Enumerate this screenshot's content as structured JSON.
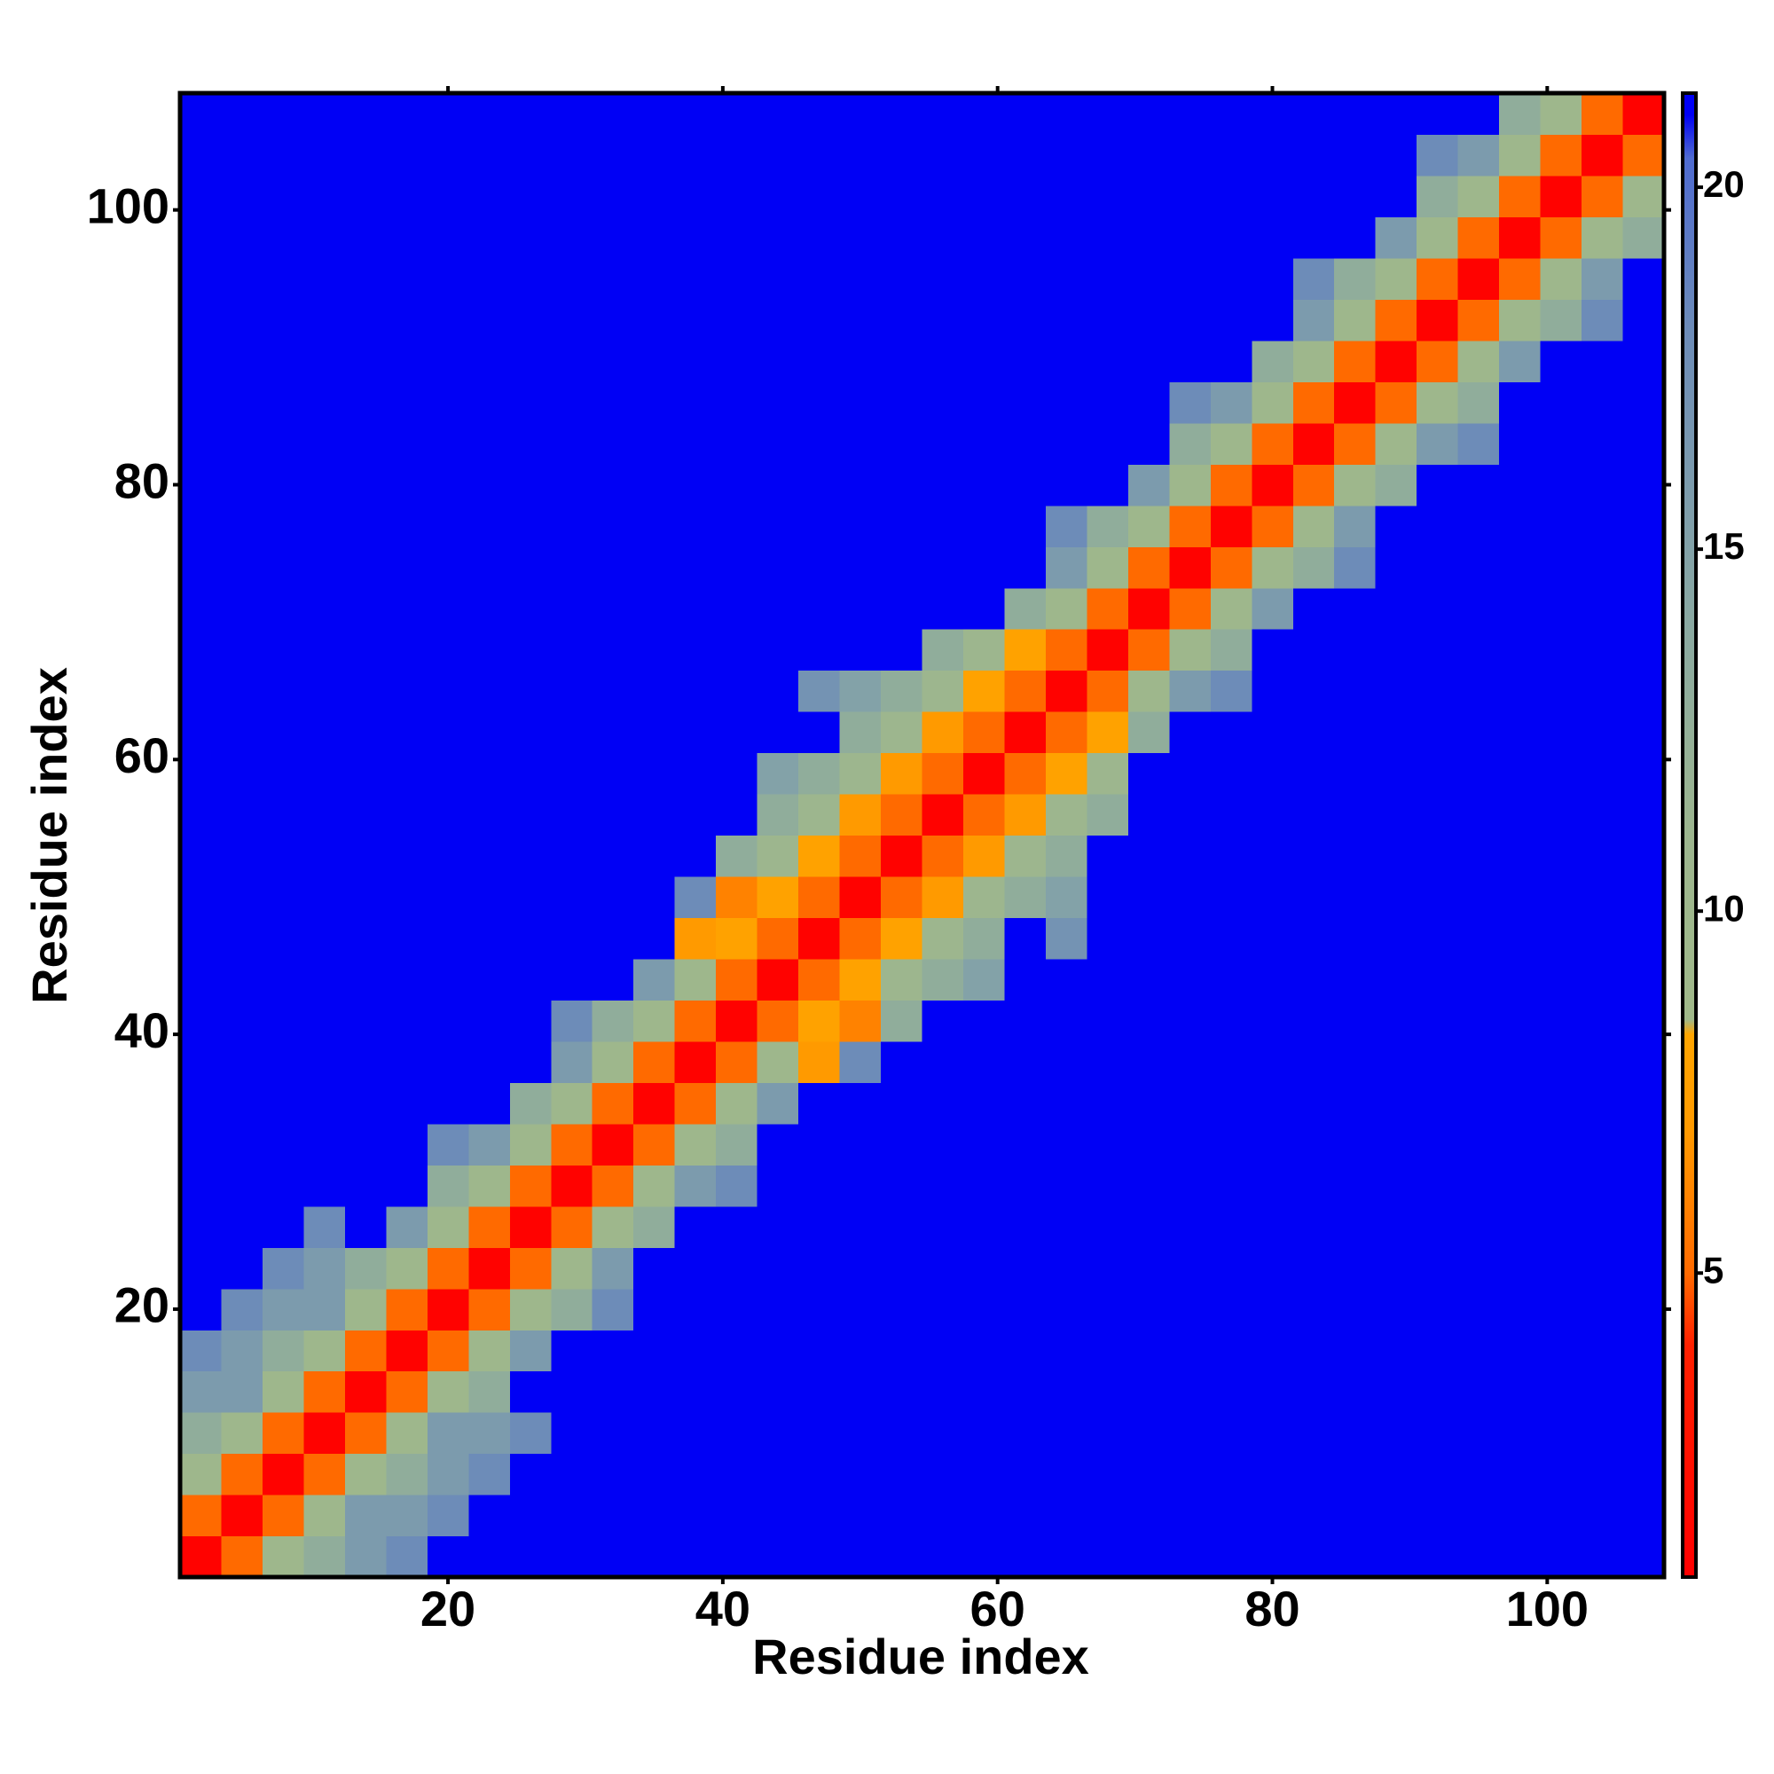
{
  "chart_data": {
    "type": "heatmap",
    "x_label": "Residue index",
    "y_label": "Residue index",
    "x": [
      2,
      5,
      8,
      11,
      14,
      17,
      20,
      23,
      26,
      29,
      32,
      35,
      38,
      41,
      44,
      47,
      50,
      53,
      56,
      59,
      62,
      65,
      68,
      71,
      74,
      77,
      80,
      83,
      86,
      89,
      92,
      95,
      98,
      101,
      104,
      107
    ],
    "y": [
      2,
      5,
      8,
      11,
      14,
      17,
      20,
      23,
      26,
      29,
      32,
      35,
      38,
      41,
      44,
      47,
      50,
      53,
      56,
      59,
      62,
      65,
      68,
      71,
      74,
      77,
      80,
      83,
      86,
      89,
      92,
      95,
      98,
      101,
      104,
      107
    ],
    "xlim": [
      0.5,
      108.5
    ],
    "ylim": [
      0.5,
      108.5
    ],
    "xticks": [
      20,
      40,
      60,
      80,
      100
    ],
    "yticks": [
      20,
      40,
      60,
      80,
      100
    ],
    "zlim": [
      0.8,
      21.3
    ],
    "zticks": [
      5,
      10,
      15,
      20
    ],
    "colorscale": [
      [
        0.8,
        "#ff0000"
      ],
      [
        4,
        "#ff2000"
      ],
      [
        5,
        "#ff6a00"
      ],
      [
        7,
        "#ff9a00"
      ],
      [
        8.3,
        "#ffa500"
      ],
      [
        8.5,
        "#a0b98a"
      ],
      [
        11,
        "#9db68e"
      ],
      [
        14,
        "#8aa9a2"
      ],
      [
        18,
        "#6d8cb8"
      ],
      [
        20.4,
        "#4f6bd0"
      ],
      [
        21,
        "#0000f5"
      ],
      [
        21.3,
        "#0000f5"
      ]
    ],
    "z": [
      [
        1,
        5,
        10,
        13,
        16,
        18,
        21,
        21,
        21,
        21,
        21,
        21,
        21,
        21,
        21,
        21,
        21,
        21,
        21,
        21,
        21,
        21,
        21,
        21,
        21,
        21,
        21,
        21,
        21,
        21,
        21,
        21,
        21,
        21,
        21,
        21
      ],
      [
        5,
        1,
        5,
        10,
        16,
        16,
        18,
        21,
        21,
        21,
        21,
        21,
        21,
        21,
        21,
        21,
        21,
        21,
        21,
        21,
        21,
        21,
        21,
        21,
        21,
        21,
        21,
        21,
        21,
        21,
        21,
        21,
        21,
        21,
        21,
        21
      ],
      [
        10,
        5,
        1,
        5,
        10,
        13,
        16,
        18,
        21,
        21,
        21,
        21,
        21,
        21,
        21,
        21,
        21,
        21,
        21,
        21,
        21,
        21,
        21,
        21,
        21,
        21,
        21,
        21,
        21,
        21,
        21,
        21,
        21,
        21,
        21,
        21
      ],
      [
        13,
        10,
        5,
        1,
        5,
        10,
        16,
        16,
        18,
        21,
        21,
        21,
        21,
        21,
        21,
        21,
        21,
        21,
        21,
        21,
        21,
        21,
        21,
        21,
        21,
        21,
        21,
        21,
        21,
        21,
        21,
        21,
        21,
        21,
        21,
        21
      ],
      [
        16,
        16,
        10,
        5,
        1,
        5,
        10,
        13,
        21,
        21,
        21,
        21,
        21,
        21,
        21,
        21,
        21,
        21,
        21,
        21,
        21,
        21,
        21,
        21,
        21,
        21,
        21,
        21,
        21,
        21,
        21,
        21,
        21,
        21,
        21,
        21
      ],
      [
        18,
        16,
        13,
        10,
        5,
        1,
        5,
        10,
        16,
        21,
        21,
        21,
        21,
        21,
        21,
        21,
        21,
        21,
        21,
        21,
        21,
        21,
        21,
        21,
        21,
        21,
        21,
        21,
        21,
        21,
        21,
        21,
        21,
        21,
        21,
        21
      ],
      [
        21,
        18,
        16,
        16,
        10,
        5,
        1,
        5,
        10,
        13,
        18,
        21,
        21,
        21,
        21,
        21,
        21,
        21,
        21,
        21,
        21,
        21,
        21,
        21,
        21,
        21,
        21,
        21,
        21,
        21,
        21,
        21,
        21,
        21,
        21,
        21
      ],
      [
        21,
        21,
        18,
        16,
        13,
        10,
        5,
        1,
        5,
        10,
        16,
        21,
        21,
        21,
        21,
        21,
        21,
        21,
        21,
        21,
        21,
        21,
        21,
        21,
        21,
        21,
        21,
        21,
        21,
        21,
        21,
        21,
        21,
        21,
        21,
        21
      ],
      [
        21,
        21,
        21,
        18,
        21,
        16,
        10,
        5,
        1,
        5,
        10,
        13,
        21,
        21,
        21,
        21,
        21,
        21,
        21,
        21,
        21,
        21,
        21,
        21,
        21,
        21,
        21,
        21,
        21,
        21,
        21,
        21,
        21,
        21,
        21,
        21
      ],
      [
        21,
        21,
        21,
        21,
        21,
        21,
        13,
        10,
        5,
        1,
        5,
        10,
        16,
        18,
        21,
        21,
        21,
        21,
        21,
        21,
        21,
        21,
        21,
        21,
        21,
        21,
        21,
        21,
        21,
        21,
        21,
        21,
        21,
        21,
        21,
        21
      ],
      [
        21,
        21,
        21,
        21,
        21,
        21,
        18,
        16,
        10,
        5,
        1,
        5,
        10,
        13,
        21,
        21,
        21,
        21,
        21,
        21,
        21,
        21,
        21,
        21,
        21,
        21,
        21,
        21,
        21,
        21,
        21,
        21,
        21,
        21,
        21,
        21
      ],
      [
        21,
        21,
        21,
        21,
        21,
        21,
        21,
        21,
        13,
        10,
        5,
        1,
        5,
        10,
        16,
        21,
        21,
        21,
        21,
        21,
        21,
        21,
        21,
        21,
        21,
        21,
        21,
        21,
        21,
        21,
        21,
        21,
        21,
        21,
        21,
        21
      ],
      [
        21,
        21,
        21,
        21,
        21,
        21,
        21,
        21,
        21,
        16,
        10,
        5,
        1,
        5,
        10,
        7,
        18,
        21,
        21,
        21,
        21,
        21,
        21,
        21,
        21,
        21,
        21,
        21,
        21,
        21,
        21,
        21,
        21,
        21,
        21,
        21
      ],
      [
        21,
        21,
        21,
        21,
        21,
        21,
        21,
        21,
        21,
        18,
        13,
        10,
        5,
        1,
        5,
        8,
        6,
        13,
        21,
        21,
        21,
        21,
        21,
        21,
        21,
        21,
        21,
        21,
        21,
        21,
        21,
        21,
        21,
        21,
        21,
        21
      ],
      [
        21,
        21,
        21,
        21,
        21,
        21,
        21,
        21,
        21,
        21,
        21,
        16,
        10,
        5,
        1,
        5,
        8,
        11,
        13,
        15,
        21,
        21,
        21,
        21,
        21,
        21,
        21,
        21,
        21,
        21,
        21,
        21,
        21,
        21,
        21,
        21
      ],
      [
        21,
        21,
        21,
        21,
        21,
        21,
        21,
        21,
        21,
        21,
        21,
        21,
        7,
        8,
        5,
        1,
        5,
        8,
        11,
        13,
        21,
        17,
        21,
        21,
        21,
        21,
        21,
        21,
        21,
        21,
        21,
        21,
        21,
        21,
        21,
        21
      ],
      [
        21,
        21,
        21,
        21,
        21,
        21,
        21,
        21,
        21,
        21,
        21,
        21,
        18,
        6,
        8,
        5,
        1,
        5,
        7,
        11,
        13,
        15,
        21,
        21,
        21,
        21,
        21,
        21,
        21,
        21,
        21,
        21,
        21,
        21,
        21,
        21
      ],
      [
        21,
        21,
        21,
        21,
        21,
        21,
        21,
        21,
        21,
        21,
        21,
        21,
        21,
        13,
        11,
        8,
        5,
        1,
        5,
        7,
        11,
        13,
        21,
        21,
        21,
        21,
        21,
        21,
        21,
        21,
        21,
        21,
        21,
        21,
        21,
        21
      ],
      [
        21,
        21,
        21,
        21,
        21,
        21,
        21,
        21,
        21,
        21,
        21,
        21,
        21,
        21,
        13,
        11,
        7,
        5,
        1,
        5,
        7,
        11,
        13,
        21,
        21,
        21,
        21,
        21,
        21,
        21,
        21,
        21,
        21,
        21,
        21,
        21
      ],
      [
        21,
        21,
        21,
        21,
        21,
        21,
        21,
        21,
        21,
        21,
        21,
        21,
        21,
        21,
        15,
        13,
        11,
        7,
        5,
        1,
        5,
        8,
        11,
        21,
        21,
        21,
        21,
        21,
        21,
        21,
        21,
        21,
        21,
        21,
        21,
        21
      ],
      [
        21,
        21,
        21,
        21,
        21,
        21,
        21,
        21,
        21,
        21,
        21,
        21,
        21,
        21,
        21,
        21,
        13,
        11,
        7,
        5,
        1,
        5,
        8,
        13,
        21,
        21,
        21,
        21,
        21,
        21,
        21,
        21,
        21,
        21,
        21,
        21
      ],
      [
        21,
        21,
        21,
        21,
        21,
        21,
        21,
        21,
        21,
        21,
        21,
        21,
        21,
        21,
        21,
        17,
        15,
        13,
        11,
        8,
        5,
        1,
        5,
        10,
        16,
        18,
        21,
        21,
        21,
        21,
        21,
        21,
        21,
        21,
        21,
        21
      ],
      [
        21,
        21,
        21,
        21,
        21,
        21,
        21,
        21,
        21,
        21,
        21,
        21,
        21,
        21,
        21,
        21,
        21,
        21,
        13,
        11,
        8,
        5,
        1,
        5,
        10,
        13,
        21,
        21,
        21,
        21,
        21,
        21,
        21,
        21,
        21,
        21
      ],
      [
        21,
        21,
        21,
        21,
        21,
        21,
        21,
        21,
        21,
        21,
        21,
        21,
        21,
        21,
        21,
        21,
        21,
        21,
        21,
        21,
        13,
        10,
        5,
        1,
        5,
        10,
        16,
        21,
        21,
        21,
        21,
        21,
        21,
        21,
        21,
        21
      ],
      [
        21,
        21,
        21,
        21,
        21,
        21,
        21,
        21,
        21,
        21,
        21,
        21,
        21,
        21,
        21,
        21,
        21,
        21,
        21,
        21,
        21,
        16,
        10,
        5,
        1,
        5,
        10,
        13,
        18,
        21,
        21,
        21,
        21,
        21,
        21,
        21
      ],
      [
        21,
        21,
        21,
        21,
        21,
        21,
        21,
        21,
        21,
        21,
        21,
        21,
        21,
        21,
        21,
        21,
        21,
        21,
        21,
        21,
        21,
        18,
        13,
        10,
        5,
        1,
        5,
        10,
        16,
        21,
        21,
        21,
        21,
        21,
        21,
        21
      ],
      [
        21,
        21,
        21,
        21,
        21,
        21,
        21,
        21,
        21,
        21,
        21,
        21,
        21,
        21,
        21,
        21,
        21,
        21,
        21,
        21,
        21,
        21,
        21,
        16,
        10,
        5,
        1,
        5,
        10,
        13,
        21,
        21,
        21,
        21,
        21,
        21
      ],
      [
        21,
        21,
        21,
        21,
        21,
        21,
        21,
        21,
        21,
        21,
        21,
        21,
        21,
        21,
        21,
        21,
        21,
        21,
        21,
        21,
        21,
        21,
        21,
        21,
        13,
        10,
        5,
        1,
        5,
        10,
        16,
        18,
        21,
        21,
        21,
        21
      ],
      [
        21,
        21,
        21,
        21,
        21,
        21,
        21,
        21,
        21,
        21,
        21,
        21,
        21,
        21,
        21,
        21,
        21,
        21,
        21,
        21,
        21,
        21,
        21,
        21,
        18,
        16,
        10,
        5,
        1,
        5,
        10,
        13,
        21,
        21,
        21,
        21
      ],
      [
        21,
        21,
        21,
        21,
        21,
        21,
        21,
        21,
        21,
        21,
        21,
        21,
        21,
        21,
        21,
        21,
        21,
        21,
        21,
        21,
        21,
        21,
        21,
        21,
        21,
        21,
        13,
        10,
        5,
        1,
        5,
        10,
        16,
        21,
        21,
        21
      ],
      [
        21,
        21,
        21,
        21,
        21,
        21,
        21,
        21,
        21,
        21,
        21,
        21,
        21,
        21,
        21,
        21,
        21,
        21,
        21,
        21,
        21,
        21,
        21,
        21,
        21,
        21,
        21,
        16,
        10,
        5,
        1,
        5,
        10,
        13,
        18,
        21
      ],
      [
        21,
        21,
        21,
        21,
        21,
        21,
        21,
        21,
        21,
        21,
        21,
        21,
        21,
        21,
        21,
        21,
        21,
        21,
        21,
        21,
        21,
        21,
        21,
        21,
        21,
        21,
        21,
        18,
        13,
        10,
        5,
        1,
        5,
        10,
        16,
        21
      ],
      [
        21,
        21,
        21,
        21,
        21,
        21,
        21,
        21,
        21,
        21,
        21,
        21,
        21,
        21,
        21,
        21,
        21,
        21,
        21,
        21,
        21,
        21,
        21,
        21,
        21,
        21,
        21,
        21,
        21,
        16,
        10,
        5,
        1,
        5,
        10,
        13
      ],
      [
        21,
        21,
        21,
        21,
        21,
        21,
        21,
        21,
        21,
        21,
        21,
        21,
        21,
        21,
        21,
        21,
        21,
        21,
        21,
        21,
        21,
        21,
        21,
        21,
        21,
        21,
        21,
        21,
        21,
        21,
        13,
        10,
        5,
        1,
        5,
        10
      ],
      [
        21,
        21,
        21,
        21,
        21,
        21,
        21,
        21,
        21,
        21,
        21,
        21,
        21,
        21,
        21,
        21,
        21,
        21,
        21,
        21,
        21,
        21,
        21,
        21,
        21,
        21,
        21,
        21,
        21,
        21,
        18,
        16,
        10,
        5,
        1,
        5
      ],
      [
        21,
        21,
        21,
        21,
        21,
        21,
        21,
        21,
        21,
        21,
        21,
        21,
        21,
        21,
        21,
        21,
        21,
        21,
        21,
        21,
        21,
        21,
        21,
        21,
        21,
        21,
        21,
        21,
        21,
        21,
        21,
        21,
        13,
        10,
        5,
        1
      ]
    ]
  }
}
